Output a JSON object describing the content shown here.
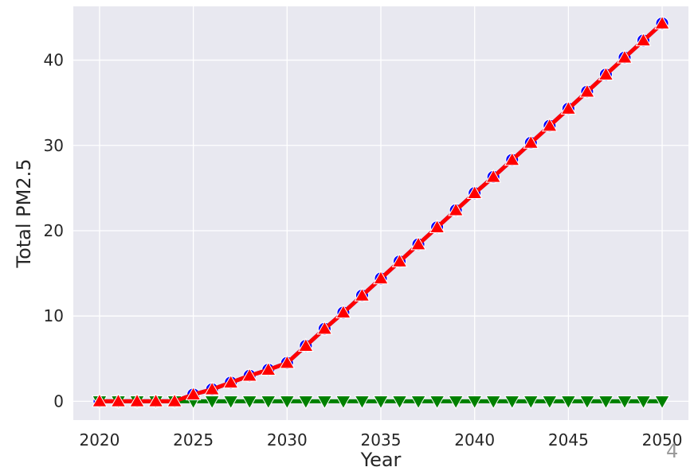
{
  "chart_data": {
    "type": "line",
    "xlabel": "Year",
    "ylabel": "Total PM2.5",
    "xlim": [
      2018.6,
      2051.4
    ],
    "ylim": [
      -2.2,
      46.3
    ],
    "xticks": [
      2020,
      2025,
      2030,
      2035,
      2040,
      2045,
      2050
    ],
    "yticks": [
      0,
      10,
      20,
      30,
      40
    ],
    "grid": true,
    "legend": "none",
    "x": [
      2020,
      2021,
      2022,
      2023,
      2024,
      2025,
      2026,
      2027,
      2028,
      2029,
      2030,
      2031,
      2032,
      2033,
      2034,
      2035,
      2036,
      2037,
      2038,
      2039,
      2040,
      2041,
      2042,
      2043,
      2044,
      2045,
      2046,
      2047,
      2048,
      2049,
      2050
    ],
    "series": [
      {
        "marker": "circle",
        "color": "#0000ff",
        "values": [
          0,
          0,
          0,
          0,
          0,
          0.8,
          1.4,
          2.2,
          3.0,
          3.7,
          4.5,
          6.5,
          8.5,
          10.4,
          12.4,
          14.4,
          16.4,
          18.4,
          20.4,
          22.4,
          24.4,
          26.3,
          28.3,
          30.3,
          32.3,
          34.3,
          36.3,
          38.3,
          40.3,
          42.3,
          44.3
        ]
      },
      {
        "marker": "triangle-up",
        "color": "#ff0000",
        "values": [
          0,
          0,
          0,
          0,
          0,
          0.8,
          1.4,
          2.2,
          3.0,
          3.7,
          4.5,
          6.5,
          8.5,
          10.4,
          12.4,
          14.4,
          16.4,
          18.4,
          20.4,
          22.4,
          24.4,
          26.3,
          28.3,
          30.3,
          32.3,
          34.3,
          36.3,
          38.3,
          40.3,
          42.3,
          44.3
        ]
      },
      {
        "marker": "triangle-down",
        "color": "#008000",
        "values": [
          0,
          0,
          0,
          0,
          0,
          0,
          0,
          0,
          0,
          0,
          0,
          0,
          0,
          0,
          0,
          0,
          0,
          0,
          0,
          0,
          0,
          0,
          0,
          0,
          0,
          0,
          0,
          0,
          0,
          0,
          0
        ]
      }
    ]
  },
  "page_number": "4",
  "colors": {
    "plot_background": "#e8e8f0",
    "grid": "#ffffff",
    "text": "#262626"
  }
}
